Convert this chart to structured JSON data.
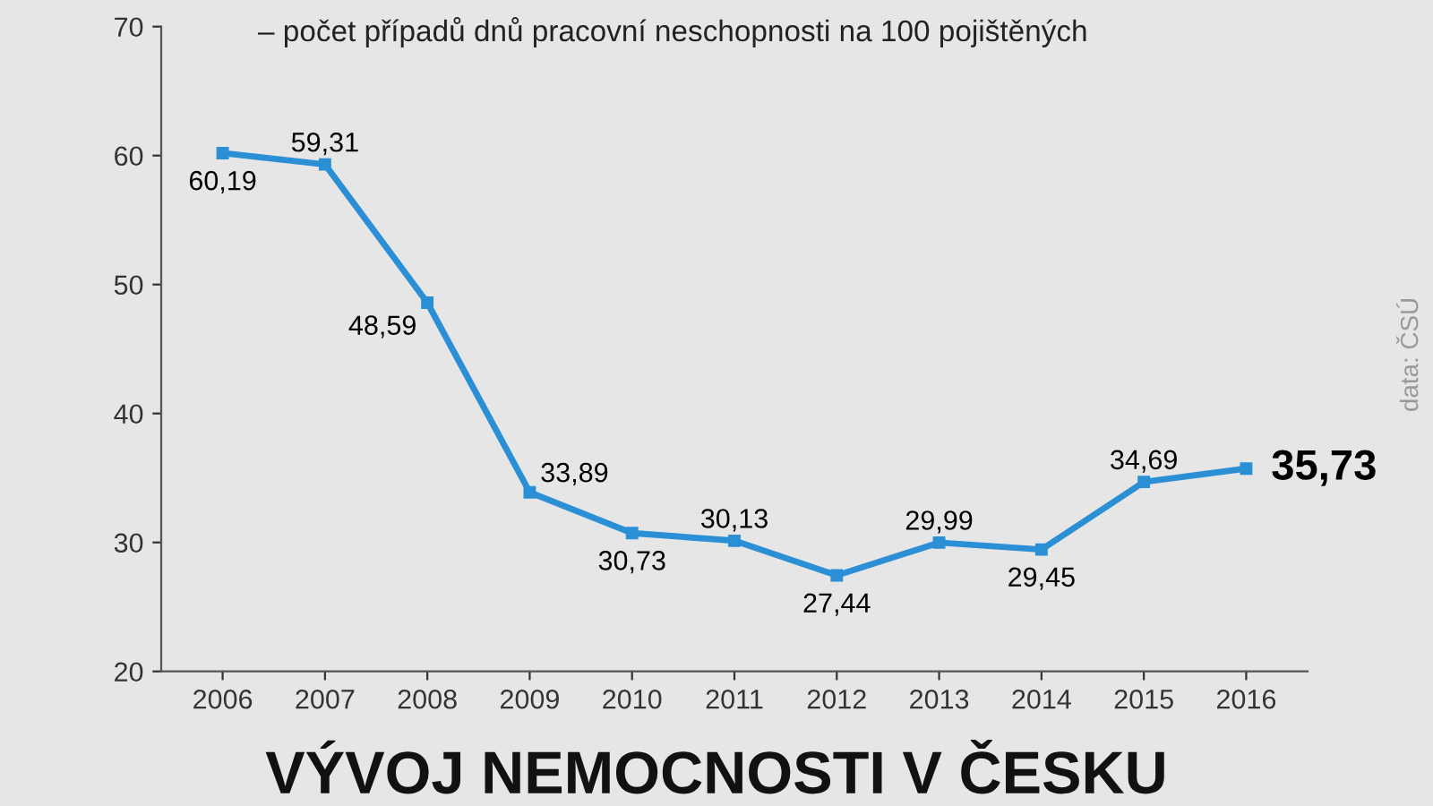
{
  "chart_data": {
    "type": "line",
    "title": "VÝVOJ NEMOCNOSTI V ČESKU",
    "subtitle": "– počet případů dnů pracovní neschopnosti na 100 pojištěných",
    "categories": [
      "2006",
      "2007",
      "2008",
      "2009",
      "2010",
      "2011",
      "2012",
      "2013",
      "2014",
      "2015",
      "2016"
    ],
    "series": [
      {
        "color": "#2b8fd6",
        "values": [
          60.19,
          59.31,
          48.59,
          33.89,
          30.73,
          30.13,
          27.44,
          29.99,
          29.45,
          34.69,
          35.73
        ],
        "value_labels": [
          "60,19",
          "59,31",
          "48,59",
          "33,89",
          "30,73",
          "30,13",
          "27,44",
          "29,99",
          "29,45",
          "34,69",
          "35,73"
        ]
      }
    ],
    "ylim": [
      20,
      70
    ],
    "yticks": [
      20,
      30,
      40,
      50,
      60,
      70
    ],
    "grid": false,
    "marker": "square",
    "line_style": "solid",
    "annotations": [
      "data: ČSÚ"
    ]
  }
}
